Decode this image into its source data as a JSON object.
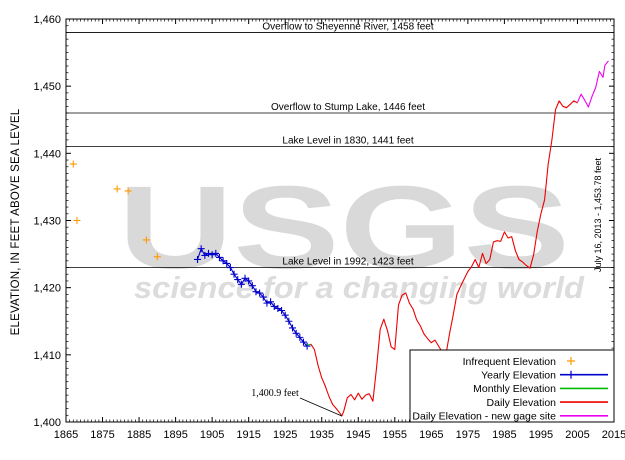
{
  "chart_data": {
    "type": "line",
    "ylabel": "ELEVATION, IN FEET ABOVE SEA LEVEL",
    "xlim": [
      1865,
      2015
    ],
    "ylim": [
      1400,
      1460
    ],
    "x_ticks": [
      "1865",
      "1875",
      "1885",
      "1895",
      "1905",
      "1915",
      "1925",
      "1935",
      "1945",
      "1955",
      "1965",
      "1975",
      "1985",
      "1995",
      "2005",
      "2015"
    ],
    "y_ticks": [
      "1,400",
      "1,410",
      "1,420",
      "1,430",
      "1,440",
      "1,450",
      "1,460"
    ],
    "watermark": {
      "big": "USGS",
      "small": "science for a changing world"
    },
    "reference_lines": [
      {
        "y": 1458,
        "label": "Overflow to Sheyenne River, 1458 feet"
      },
      {
        "y": 1446,
        "label": "Overflow to Stump Lake, 1446 feet"
      },
      {
        "y": 1441,
        "label": "Lake Level in 1830, 1441 feet"
      },
      {
        "y": 1423,
        "label": "Lake Level in 1992, 1423 feet"
      }
    ],
    "annotations": {
      "minimum": {
        "label": "1,400.9 feet",
        "x": 1940.5,
        "y": 1400.9
      },
      "current": {
        "label": "July 16, 2013 - 1,453.78 feet",
        "x": 2013.5,
        "y": 1453.78
      }
    },
    "legend_position": "bottom-right",
    "series": [
      {
        "name": "Infrequent Elevation",
        "color": "#ff9900",
        "style": "plus",
        "points": [
          [
            1867,
            1438.4
          ],
          [
            1868,
            1430
          ],
          [
            1879,
            1434.7
          ],
          [
            1882,
            1434.4
          ],
          [
            1887,
            1427.1
          ],
          [
            1890,
            1424.6
          ]
        ]
      },
      {
        "name": "Yearly Elevation",
        "color": "#0000cc",
        "style": "line-plus",
        "points": [
          [
            1901,
            1424.2
          ],
          [
            1902,
            1425.8
          ],
          [
            1903,
            1424.8
          ],
          [
            1904,
            1425.1
          ],
          [
            1905,
            1424.9
          ],
          [
            1906,
            1425.1
          ],
          [
            1907,
            1424.5
          ],
          [
            1908,
            1424.0
          ],
          [
            1909,
            1423.6
          ],
          [
            1910,
            1423.0
          ],
          [
            1911,
            1422.0
          ],
          [
            1912,
            1421.2
          ],
          [
            1913,
            1420.5
          ],
          [
            1914,
            1421.4
          ],
          [
            1915,
            1421.0
          ],
          [
            1916,
            1420.3
          ],
          [
            1917,
            1419.4
          ],
          [
            1918,
            1419.2
          ],
          [
            1919,
            1418.6
          ],
          [
            1920,
            1417.7
          ],
          [
            1921,
            1417.9
          ],
          [
            1922,
            1417.2
          ],
          [
            1923,
            1416.9
          ],
          [
            1924,
            1416.6
          ],
          [
            1925,
            1415.9
          ],
          [
            1926,
            1415.0
          ],
          [
            1927,
            1414.0
          ],
          [
            1928,
            1413.2
          ],
          [
            1929,
            1412.6
          ],
          [
            1930,
            1411.9
          ],
          [
            1931,
            1411.3
          ]
        ]
      },
      {
        "name": "Monthly Elevation",
        "color": "#00bb00",
        "style": "line",
        "points": [
          [
            1931,
            1411.4
          ],
          [
            1932,
            1411.6
          ]
        ]
      },
      {
        "name": "Daily Elevation",
        "color": "#ee0000",
        "style": "line",
        "points": [
          [
            1932,
            1411.6
          ],
          [
            1933,
            1410.8
          ],
          [
            1934,
            1408.4
          ],
          [
            1935,
            1406.6
          ],
          [
            1936,
            1405.3
          ],
          [
            1937,
            1403.8
          ],
          [
            1938,
            1402.6
          ],
          [
            1939,
            1402.0
          ],
          [
            1940,
            1401.3
          ],
          [
            1940.5,
            1400.9
          ],
          [
            1941,
            1401.6
          ],
          [
            1942,
            1403.6
          ],
          [
            1943,
            1404.1
          ],
          [
            1944,
            1403.3
          ],
          [
            1945,
            1404.3
          ],
          [
            1946,
            1403.4
          ],
          [
            1947,
            1404.0
          ],
          [
            1948,
            1404.2
          ],
          [
            1949,
            1403.1
          ],
          [
            1950,
            1408.0
          ],
          [
            1951,
            1413.8
          ],
          [
            1952,
            1415.3
          ],
          [
            1953,
            1413.6
          ],
          [
            1954,
            1411.2
          ],
          [
            1955,
            1410.8
          ],
          [
            1956,
            1417.4
          ],
          [
            1957,
            1418.9
          ],
          [
            1958,
            1419.2
          ],
          [
            1959,
            1417.7
          ],
          [
            1960,
            1416.8
          ],
          [
            1961,
            1415.2
          ],
          [
            1962,
            1414.3
          ],
          [
            1963,
            1413.1
          ],
          [
            1964,
            1412.4
          ],
          [
            1965,
            1411.8
          ],
          [
            1966,
            1412.2
          ],
          [
            1967,
            1411.3
          ],
          [
            1968,
            1410.4
          ],
          [
            1969,
            1410.0
          ],
          [
            1970,
            1413.2
          ],
          [
            1971,
            1416.0
          ],
          [
            1972,
            1419.0
          ],
          [
            1973,
            1420.2
          ],
          [
            1974,
            1421.3
          ],
          [
            1975,
            1422.4
          ],
          [
            1976,
            1423.1
          ],
          [
            1977,
            1424.2
          ],
          [
            1978,
            1423.0
          ],
          [
            1979,
            1425.1
          ],
          [
            1980,
            1423.6
          ],
          [
            1981,
            1424.2
          ],
          [
            1982,
            1426.8
          ],
          [
            1983,
            1427.0
          ],
          [
            1984,
            1426.9
          ],
          [
            1985,
            1428.3
          ],
          [
            1986,
            1427.4
          ],
          [
            1987,
            1427.6
          ],
          [
            1988,
            1425.5
          ],
          [
            1989,
            1424.2
          ],
          [
            1990,
            1423.8
          ],
          [
            1991,
            1423.3
          ],
          [
            1992,
            1422.9
          ],
          [
            1993,
            1424.9
          ],
          [
            1994,
            1428.4
          ],
          [
            1995,
            1431.0
          ],
          [
            1996,
            1433.1
          ],
          [
            1997,
            1438.4
          ],
          [
            1998,
            1442.0
          ],
          [
            1999,
            1446.5
          ],
          [
            2000,
            1447.8
          ],
          [
            2001,
            1447.0
          ],
          [
            2002,
            1446.8
          ],
          [
            2003,
            1447.3
          ],
          [
            2004,
            1447.8
          ],
          [
            2005,
            1447.5
          ]
        ]
      },
      {
        "name": "Daily Elevation - new gage site",
        "color": "#ee00ee",
        "style": "line",
        "points": [
          [
            2005,
            1447.6
          ],
          [
            2006,
            1448.8
          ],
          [
            2007,
            1447.9
          ],
          [
            2008,
            1446.9
          ],
          [
            2009,
            1448.5
          ],
          [
            2010,
            1449.8
          ],
          [
            2011,
            1452.2
          ],
          [
            2012,
            1451.3
          ],
          [
            2012.5,
            1453.1
          ],
          [
            2013.5,
            1453.78
          ]
        ]
      }
    ]
  }
}
